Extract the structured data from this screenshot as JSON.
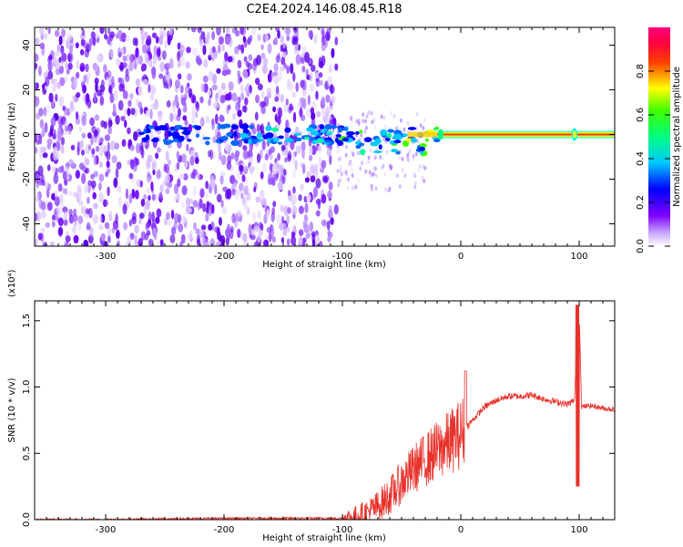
{
  "chart_data": [
    {
      "type": "heatmap",
      "title": "C2E4.2024.146.08.45.R18",
      "xlabel": "Height of straight line (km)",
      "ylabel": "Frequency (Hz)",
      "xlim": [
        -360,
        130
      ],
      "ylim": [
        -50,
        48
      ],
      "xticks": [
        -300,
        -200,
        -100,
        0,
        100
      ],
      "yticks": [
        -40,
        -20,
        0,
        20,
        40
      ],
      "colorbar": {
        "label": "Normalized spectral amplitude",
        "range": [
          0.0,
          1.0
        ],
        "ticks": [
          0.0,
          0.2,
          0.4,
          0.6,
          0.8
        ],
        "colormap": [
          "#ffffff",
          "#7f00ff",
          "#0000ff",
          "#00ffff",
          "#00ff00",
          "#ffff00",
          "#ff0000",
          "#ff0080"
        ]
      },
      "features": {
        "noise_region_x": [
          -360,
          -105
        ],
        "ridge_frequency_hz": 0,
        "ridge_start_x": -20,
        "ridge_peak_amplitude": 1.0
      }
    },
    {
      "type": "line",
      "xlabel": "Height of straight line (km)",
      "ylabel": "SNR (10 * v/v)",
      "yscale_label": "(x10⁴)",
      "xlim": [
        -360,
        130
      ],
      "ylim": [
        0,
        1.65
      ],
      "xticks": [
        -300,
        -200,
        -100,
        0,
        100
      ],
      "yticks": [
        0.0,
        0.5,
        1.0,
        1.5
      ],
      "color": "#e8312a",
      "series": [
        {
          "x": [
            -360,
            -300,
            -200,
            -150,
            -110,
            -100,
            -90,
            -80,
            -70,
            -60,
            -50,
            -40,
            -30,
            -20,
            -10,
            0,
            10,
            20,
            30,
            40,
            50,
            60,
            70,
            80,
            90,
            96,
            98,
            100,
            102,
            110,
            120,
            130
          ],
          "y": [
            0.0,
            0.0,
            0.01,
            0.01,
            0.01,
            0.01,
            0.02,
            0.05,
            0.1,
            0.18,
            0.28,
            0.38,
            0.45,
            0.52,
            0.58,
            0.65,
            0.75,
            0.85,
            0.9,
            0.93,
            0.93,
            0.94,
            0.91,
            0.89,
            0.87,
            0.9,
            1.3,
            1.6,
            0.85,
            0.86,
            0.84,
            0.83
          ]
        }
      ]
    }
  ]
}
